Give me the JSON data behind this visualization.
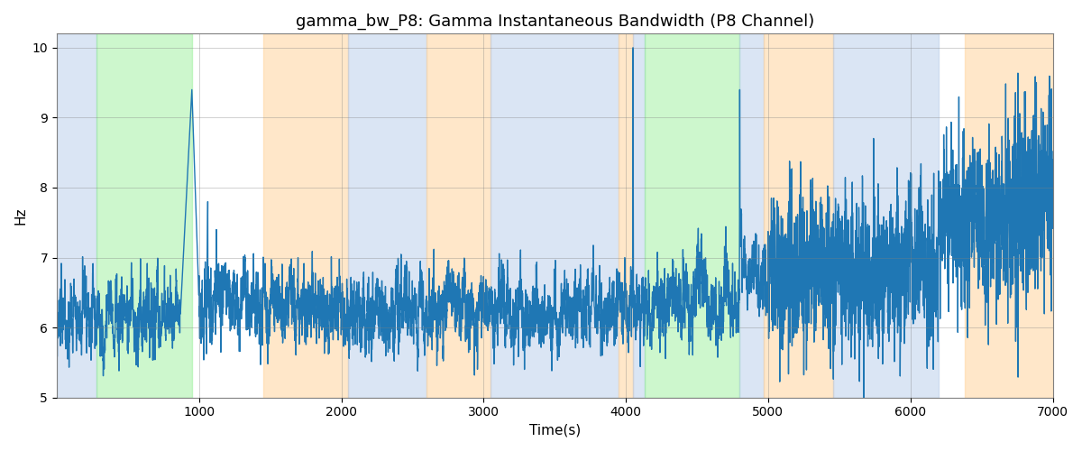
{
  "title": "gamma_bw_P8: Gamma Instantaneous Bandwidth (P8 Channel)",
  "xlabel": "Time(s)",
  "ylabel": "Hz",
  "xlim": [
    0,
    7000
  ],
  "ylim": [
    5,
    10.2
  ],
  "yticks": [
    5,
    6,
    7,
    8,
    9,
    10
  ],
  "xticks": [
    1000,
    2000,
    3000,
    4000,
    5000,
    6000,
    7000
  ],
  "line_color": "#1f77b4",
  "line_width": 1.0,
  "background_color": "#ffffff",
  "bands": [
    {
      "xmin": 0,
      "xmax": 280,
      "color": "#aec6e8",
      "alpha": 0.45
    },
    {
      "xmin": 280,
      "xmax": 950,
      "color": "#90ee90",
      "alpha": 0.45
    },
    {
      "xmin": 950,
      "xmax": 1450,
      "color": "#ffffff",
      "alpha": 0.0
    },
    {
      "xmin": 1450,
      "xmax": 2050,
      "color": "#ffd59e",
      "alpha": 0.55
    },
    {
      "xmin": 2050,
      "xmax": 2600,
      "color": "#aec6e8",
      "alpha": 0.45
    },
    {
      "xmin": 2600,
      "xmax": 3050,
      "color": "#ffd59e",
      "alpha": 0.55
    },
    {
      "xmin": 3050,
      "xmax": 3950,
      "color": "#aec6e8",
      "alpha": 0.45
    },
    {
      "xmin": 3950,
      "xmax": 4050,
      "color": "#ffd59e",
      "alpha": 0.55
    },
    {
      "xmin": 4050,
      "xmax": 4130,
      "color": "#aec6e8",
      "alpha": 0.45
    },
    {
      "xmin": 4130,
      "xmax": 4800,
      "color": "#90ee90",
      "alpha": 0.45
    },
    {
      "xmin": 4800,
      "xmax": 4970,
      "color": "#aec6e8",
      "alpha": 0.45
    },
    {
      "xmin": 4970,
      "xmax": 5460,
      "color": "#ffd59e",
      "alpha": 0.55
    },
    {
      "xmin": 5460,
      "xmax": 6200,
      "color": "#aec6e8",
      "alpha": 0.45
    },
    {
      "xmin": 6200,
      "xmax": 6380,
      "color": "#ffffff",
      "alpha": 0.0
    },
    {
      "xmin": 6380,
      "xmax": 7000,
      "color": "#ffd59e",
      "alpha": 0.55
    }
  ],
  "seed": 42,
  "n_points": 6700
}
